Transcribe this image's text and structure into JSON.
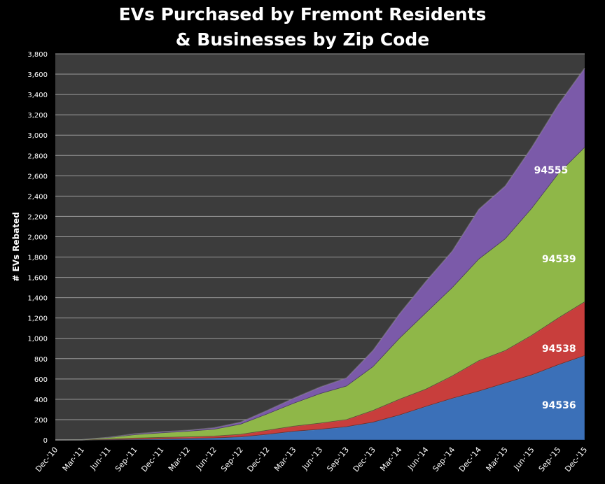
{
  "chart_data": {
    "type": "area",
    "stacked": true,
    "title": [
      "EVs Purchased by Fremont Residents",
      "& Businesses by Zip Code"
    ],
    "xlabel": "",
    "ylabel": "# EVs Rebated",
    "ylim": [
      0,
      3800
    ],
    "yticks": [
      0,
      200,
      400,
      600,
      800,
      1000,
      1200,
      1400,
      1600,
      1800,
      2000,
      2200,
      2400,
      2600,
      2800,
      3000,
      3200,
      3400,
      3600,
      3800
    ],
    "ytick_labels": [
      "0",
      "200",
      "400",
      "600",
      "800",
      "1,000",
      "1,200",
      "1,400",
      "1,600",
      "1,800",
      "2,000",
      "2,200",
      "2,400",
      "2,600",
      "2,800",
      "3,000",
      "3,200",
      "3,400",
      "3,600",
      "3,800"
    ],
    "categories": [
      "Dec-'10",
      "Mar-'11",
      "Jun-'11",
      "Sep-'11",
      "Dec-'11",
      "Mar-'12",
      "Jun-'12",
      "Sep-'12",
      "Dec-'12",
      "Mar-'13",
      "Jun-'13",
      "Sep-'13",
      "Dec-'13",
      "Mar-'14",
      "Jun-'14",
      "Sep-'14",
      "Dec-'14",
      "Mar-'15",
      "Jun-'15",
      "Sep-'15",
      "Dec-'15"
    ],
    "grid": true,
    "series": [
      {
        "name": "94536",
        "color": "#3b70b8",
        "values": [
          0,
          0,
          3,
          6,
          10,
          15,
          20,
          30,
          55,
          85,
          105,
          130,
          175,
          245,
          330,
          410,
          480,
          560,
          640,
          740,
          830
        ]
      },
      {
        "name": "94538",
        "color": "#c83e3c",
        "values": [
          0,
          0,
          5,
          12,
          15,
          15,
          18,
          25,
          40,
          50,
          60,
          70,
          115,
          155,
          170,
          220,
          300,
          320,
          390,
          460,
          530
        ]
      },
      {
        "name": "94539",
        "color": "#8fb748",
        "values": [
          0,
          2,
          14,
          34,
          45,
          55,
          67,
          100,
          160,
          225,
          290,
          330,
          430,
          600,
          750,
          870,
          1000,
          1100,
          1250,
          1420,
          1520
        ]
      },
      {
        "name": "94555",
        "color": "#7b5aa9",
        "values": [
          0,
          0,
          3,
          8,
          10,
          10,
          15,
          20,
          35,
          50,
          65,
          80,
          160,
          240,
          310,
          360,
          490,
          520,
          600,
          680,
          780
        ]
      }
    ]
  }
}
